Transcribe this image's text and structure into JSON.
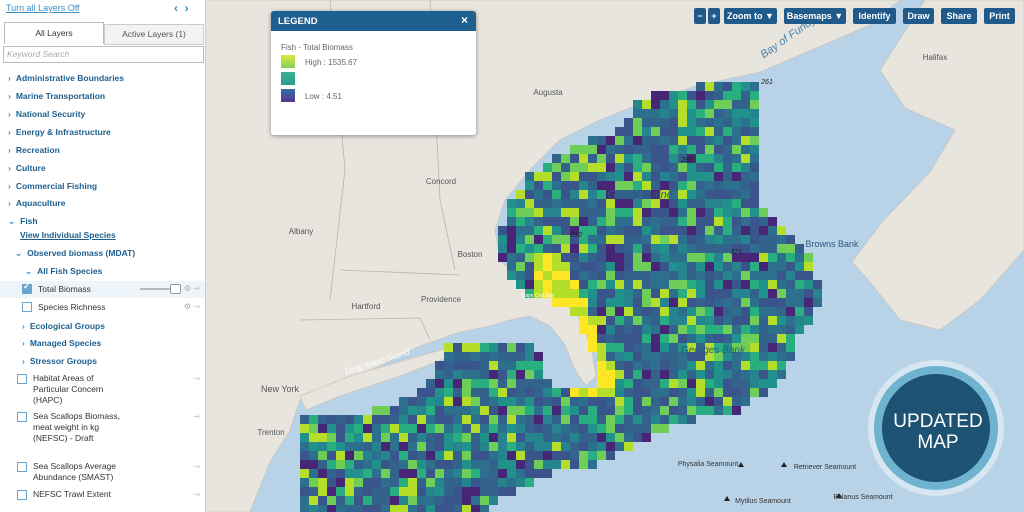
{
  "sidebar": {
    "turn_off": "Turn all Layers Off",
    "tabs": [
      "All Layers",
      "Active Layers (1)"
    ],
    "search_placeholder": "Keyword Search",
    "layers": [
      "Administrative Boundaries",
      "Marine Transportation",
      "National Security",
      "Energy & Infrastructure",
      "Recreation",
      "Culture",
      "Commercial Fishing",
      "Aquaculture",
      "Fish"
    ],
    "view_species": "View Individual Species",
    "observed": "Observed biomass (MDAT)",
    "all_fish": "All Fish Species",
    "sublayers": [
      "Total Biomass",
      "Species Richness"
    ],
    "groups": [
      "Ecological Groups",
      "Managed Species",
      "Stressor Groups"
    ],
    "other_layers": [
      "Habitat Areas of Particular Concern (HAPC)",
      "Sea Scallops Biomass, meat weight in kg (NEFSC) - Draft",
      "Sea Scallops Average Abundance (SMAST)",
      "NEFSC Trawl Extent"
    ]
  },
  "toolbar": [
    "−",
    "+",
    "Zoom to ▼",
    "Basemaps ▼",
    "Identify",
    "Draw",
    "Share",
    "Print"
  ],
  "legend": {
    "title": "LEGEND",
    "close": "×",
    "layer": "Fish - Total Biomass",
    "high": "High : 1535.67",
    "low": "Low : 4.51"
  },
  "map_labels": [
    "Augusta",
    "Concord",
    "Albany",
    "Boston",
    "Hartford",
    "Providence",
    "New York",
    "Trenton",
    "Long Island Sound",
    "Gulf of Maine",
    "Georges Bank",
    "Browns Bank",
    "Bay of Fundy",
    "Halifax",
    "Physalia Seamount",
    "Retriever Seamount",
    "Mytilus Seamount",
    "Balanus Seamount",
    "261",
    "288",
    "292",
    "371",
    "Cape Cod Bay"
  ],
  "badge": [
    "UPDATED",
    "MAP"
  ]
}
